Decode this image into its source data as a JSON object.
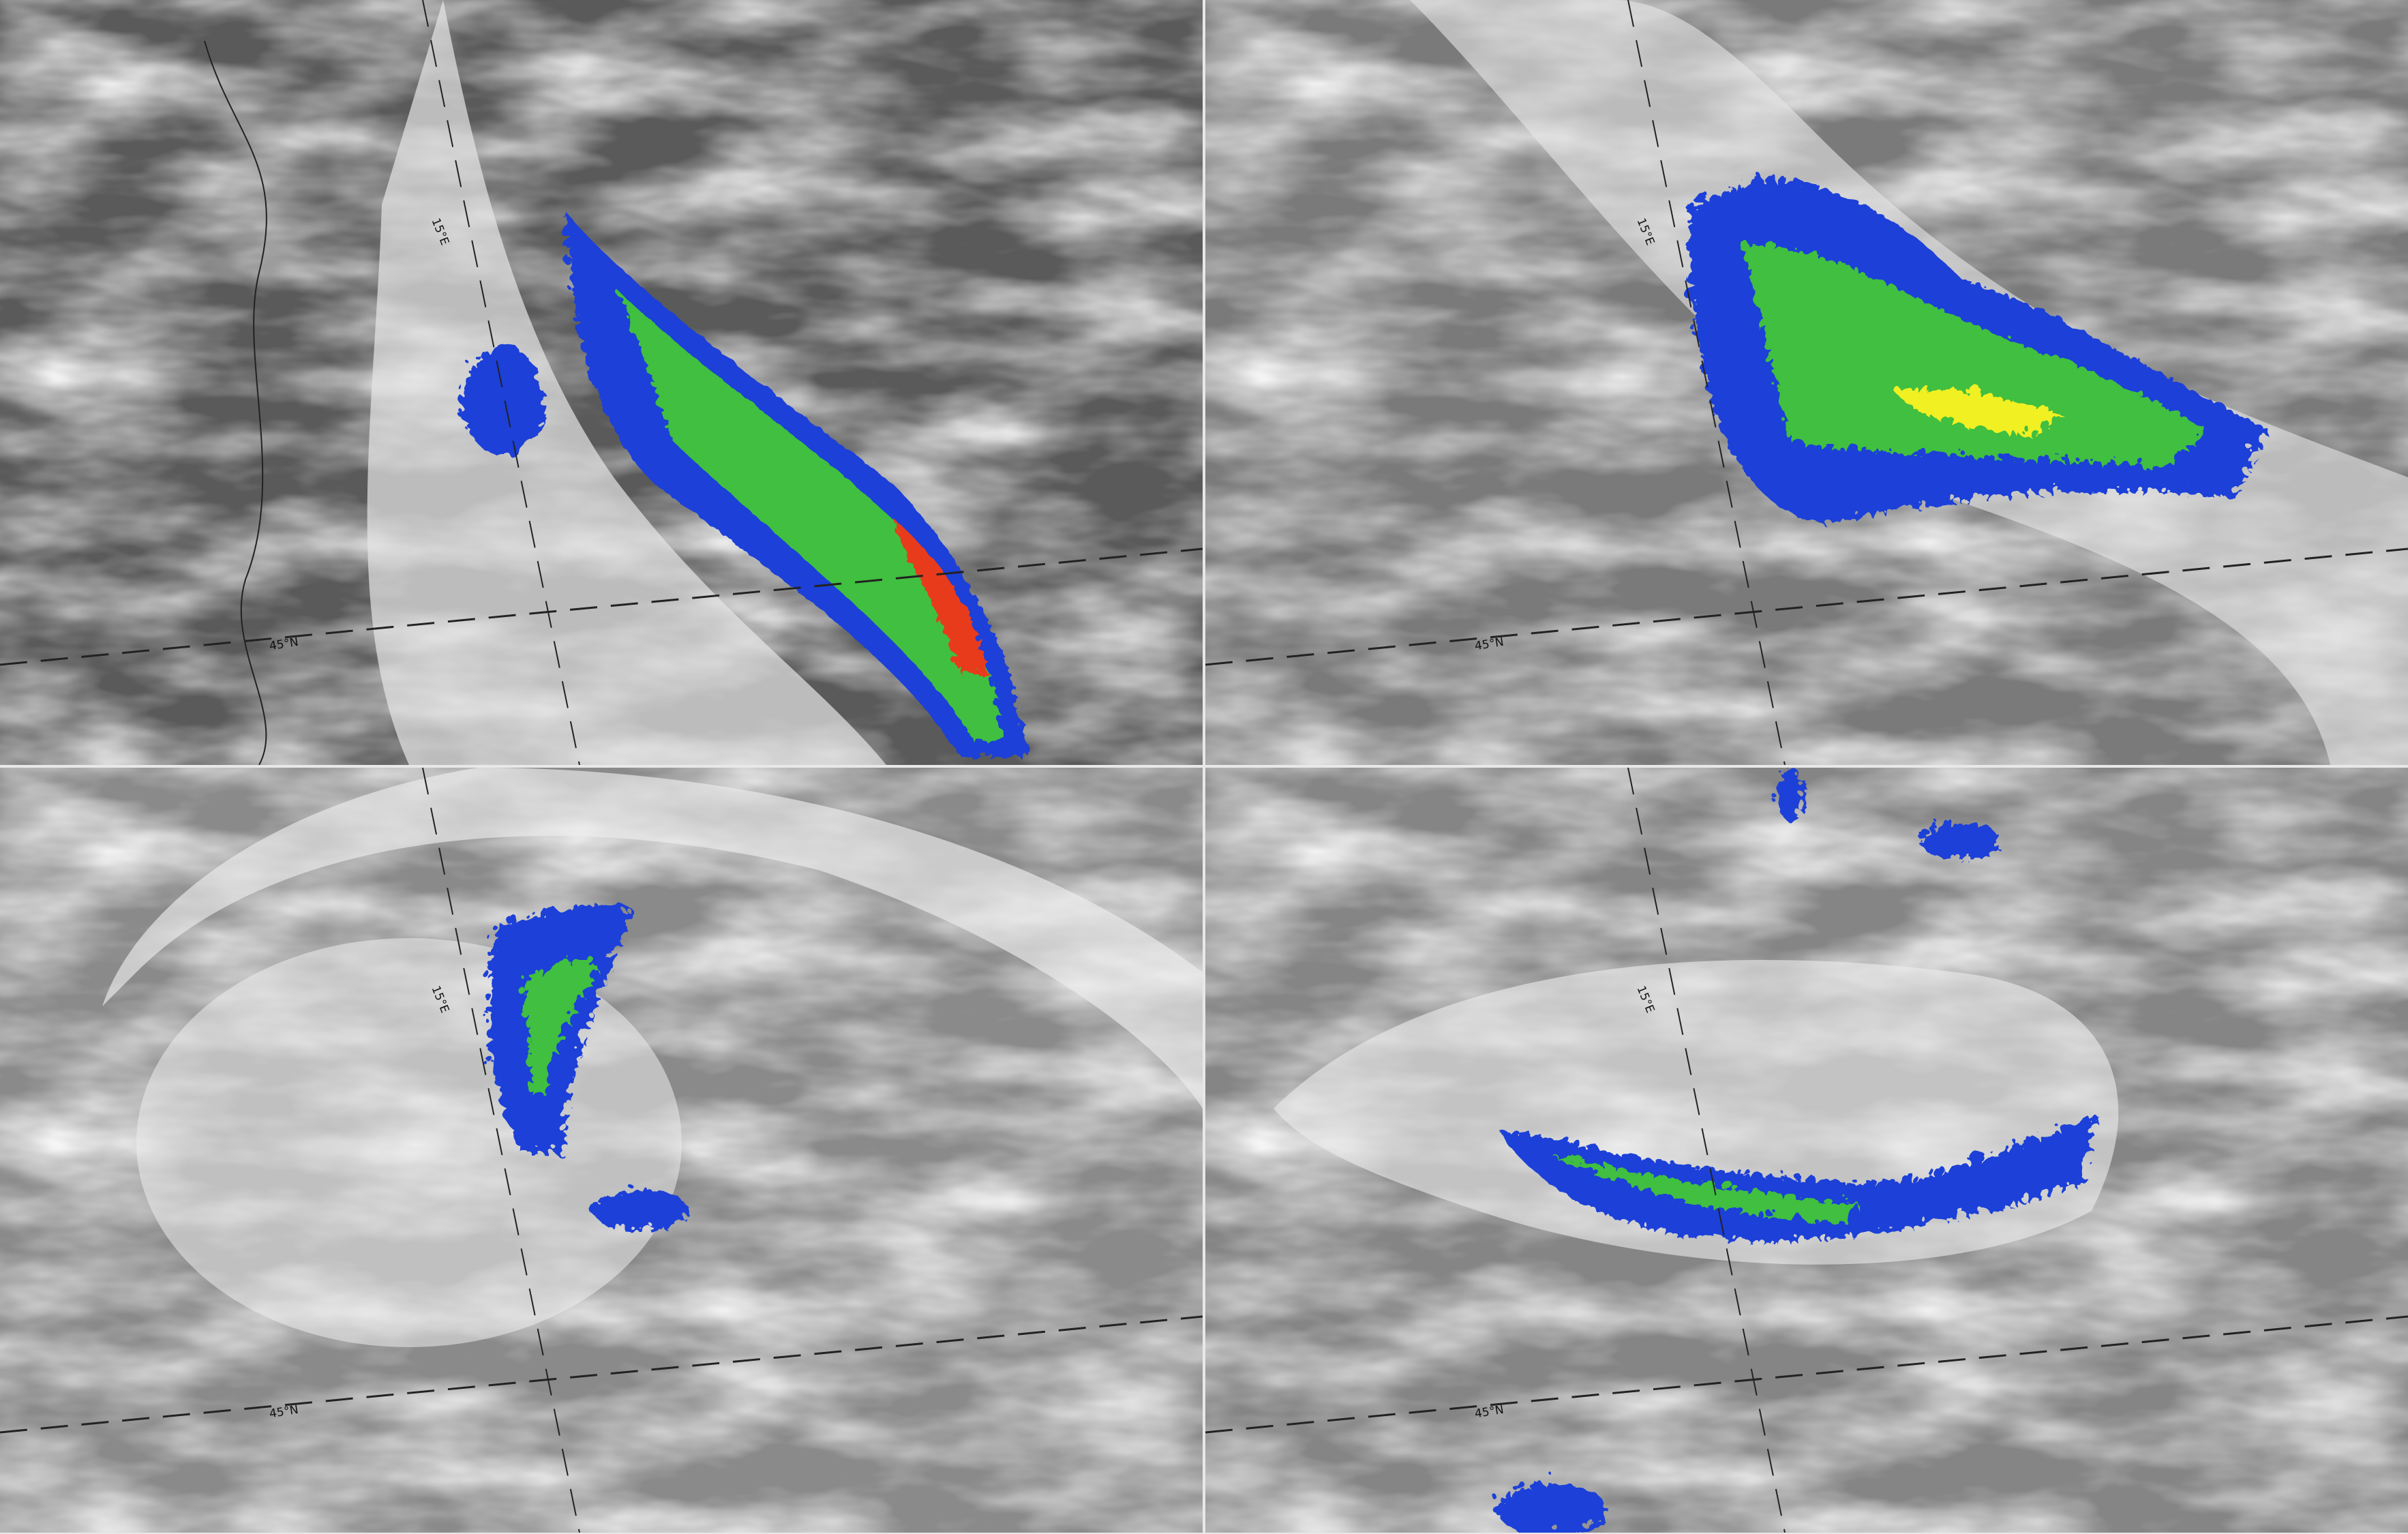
{
  "panels": [
    {
      "id": "top-left",
      "lat_label": "45°N",
      "lon_label": "15°E",
      "background": "#6e6e6e"
    },
    {
      "id": "top-right",
      "lat_label": "45°N",
      "lon_label": "15°E",
      "background": "#8c8c8c"
    },
    {
      "id": "bottom-left",
      "lat_label": "45°N",
      "lon_label": "15°E",
      "background": "#9a9a9a"
    },
    {
      "id": "bottom-right",
      "lat_label": "45°N",
      "lon_label": "15°E",
      "background": "#959595"
    }
  ],
  "colors": {
    "precip_low": "#1f3fd8",
    "precip_mid": "#21a8e8",
    "precip_high": "#3fbf3f",
    "precip_heavy": "#f0f020",
    "precip_extreme": "#e83a1a"
  }
}
